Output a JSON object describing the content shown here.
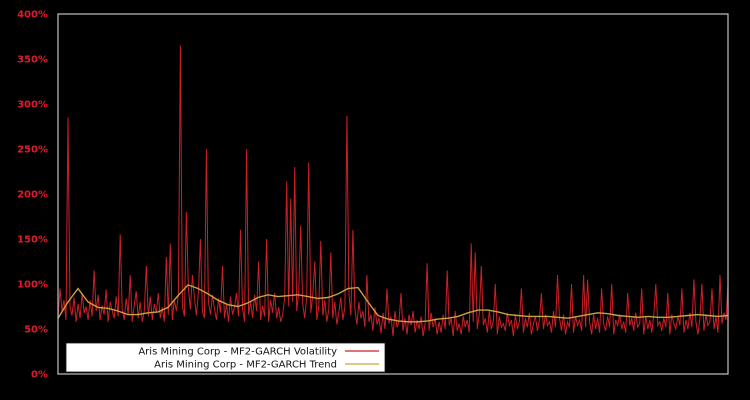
{
  "figure": {
    "background_color": "#000000",
    "frame_color": "#c2c2c2",
    "tick_label_color": "#df1b2b"
  },
  "y_axis": {
    "ticks": [
      "400%",
      "350%",
      "300%",
      "250%",
      "200%",
      "150%",
      "100%",
      "50%",
      "0%"
    ]
  },
  "legend": {
    "background": "#ffffff",
    "items": [
      {
        "label": "Aris Mining Corp - MF2-GARCH Volatility",
        "color": "#cc2028"
      },
      {
        "label": "Aris Mining Corp - MF2-GARCH Trend",
        "color": "#c9a43e"
      }
    ]
  },
  "chart_data": {
    "type": "line",
    "title": "",
    "xlabel": "",
    "ylabel": "",
    "ylim": [
      0,
      400
    ],
    "y_tick_step_percent": 50,
    "grid": false,
    "legend_position": "bottom-left",
    "unit": "%",
    "series": [
      {
        "name": "Aris Mining Corp - MF2-GARCH Volatility",
        "color": "#cc2028",
        "stroke_width": 1,
        "values": [
          62,
          95,
          70,
          82,
          60,
          285,
          75,
          65,
          85,
          58,
          78,
          62,
          90,
          68,
          75,
          60,
          82,
          64,
          115,
          70,
          88,
          60,
          76,
          66,
          94,
          58,
          80,
          70,
          62,
          86,
          64,
          155,
          72,
          60,
          84,
          66,
          110,
          58,
          76,
          92,
          62,
          80,
          58,
          70,
          120,
          64,
          86,
          60,
          78,
          68,
          90,
          62,
          74,
          58,
          130,
          66,
          145,
          60,
          82,
          70,
          88,
          365,
          75,
          64,
          180,
          95,
          72,
          110,
          85,
          65,
          90,
          150,
          70,
          62,
          250,
          80,
          66,
          88,
          72,
          60,
          84,
          68,
          120,
          62,
          78,
          58,
          86,
          66,
          74,
          90,
          64,
          160,
          72,
          58,
          250,
          66,
          80,
          62,
          88,
          70,
          125,
          60,
          76,
          64,
          150,
          58,
          82,
          68,
          90,
          62,
          74,
          58,
          66,
          85,
          214,
          75,
          195,
          80,
          230,
          70,
          90,
          165,
          78,
          62,
          85,
          235,
          68,
          88,
          125,
          60,
          75,
          148,
          65,
          82,
          58,
          72,
          135,
          62,
          80,
          55,
          68,
          85,
          60,
          75,
          287,
          90,
          65,
          160,
          72,
          55,
          80,
          62,
          70,
          52,
          110,
          58,
          66,
          48,
          74,
          55,
          62,
          45,
          68,
          50,
          95,
          56,
          64,
          42,
          70,
          52,
          58,
          90,
          48,
          62,
          44,
          66,
          54,
          70,
          46,
          60,
          50,
          64,
          42,
          56,
          123,
          48,
          68,
          52,
          62,
          44,
          58,
          46,
          66,
          50,
          115,
          54,
          62,
          42,
          70,
          48,
          56,
          44,
          64,
          52,
          60,
          46,
          145,
          58,
          135,
          50,
          66,
          120,
          54,
          62,
          46,
          70,
          50,
          58,
          100,
          44,
          64,
          52,
          56,
          48,
          68,
          54,
          60,
          42,
          66,
          50,
          58,
          95,
          46,
          62,
          52,
          68,
          44,
          56,
          64,
          48,
          60,
          90,
          50,
          66,
          54,
          58,
          46,
          70,
          52,
          110,
          62,
          48,
          66,
          44,
          58,
          52,
          100,
          46,
          64,
          54,
          60,
          48,
          110,
          52,
          105,
          58,
          44,
          66,
          50,
          62,
          46,
          95,
          56,
          48,
          64,
          52,
          100,
          44,
          60,
          54,
          66,
          50,
          58,
          46,
          90,
          54,
          62,
          48,
          68,
          52,
          56,
          95,
          44,
          64,
          50,
          60,
          46,
          66,
          100,
          54,
          58,
          48,
          62,
          52,
          90,
          44,
          66,
          56,
          50,
          64,
          54,
          95,
          46,
          60,
          50,
          68,
          52,
          105,
          58,
          44,
          62,
          100,
          48,
          66,
          54,
          58,
          95,
          50,
          64,
          46,
          110,
          56,
          68,
          60,
          100
        ]
      },
      {
        "name": "Aris Mining Corp - MF2-GARCH Trend",
        "color": "#c9a43e",
        "stroke_width": 1.4,
        "values": [
          62,
          80,
          95,
          80,
          74,
          73,
          70,
          66,
          66,
          68,
          69,
          74,
          87,
          99,
          95,
          89,
          82,
          77,
          75,
          79,
          85,
          88,
          86,
          87,
          88,
          86,
          84,
          85,
          89,
          95,
          96,
          80,
          65,
          61,
          59,
          58,
          58,
          59,
          61,
          62,
          64,
          68,
          71,
          71,
          69,
          66,
          65,
          64,
          64,
          64,
          63,
          62,
          64,
          66,
          68,
          67,
          65,
          64,
          63,
          64,
          63,
          63,
          64,
          65,
          66,
          65,
          64,
          65
        ]
      }
    ]
  }
}
